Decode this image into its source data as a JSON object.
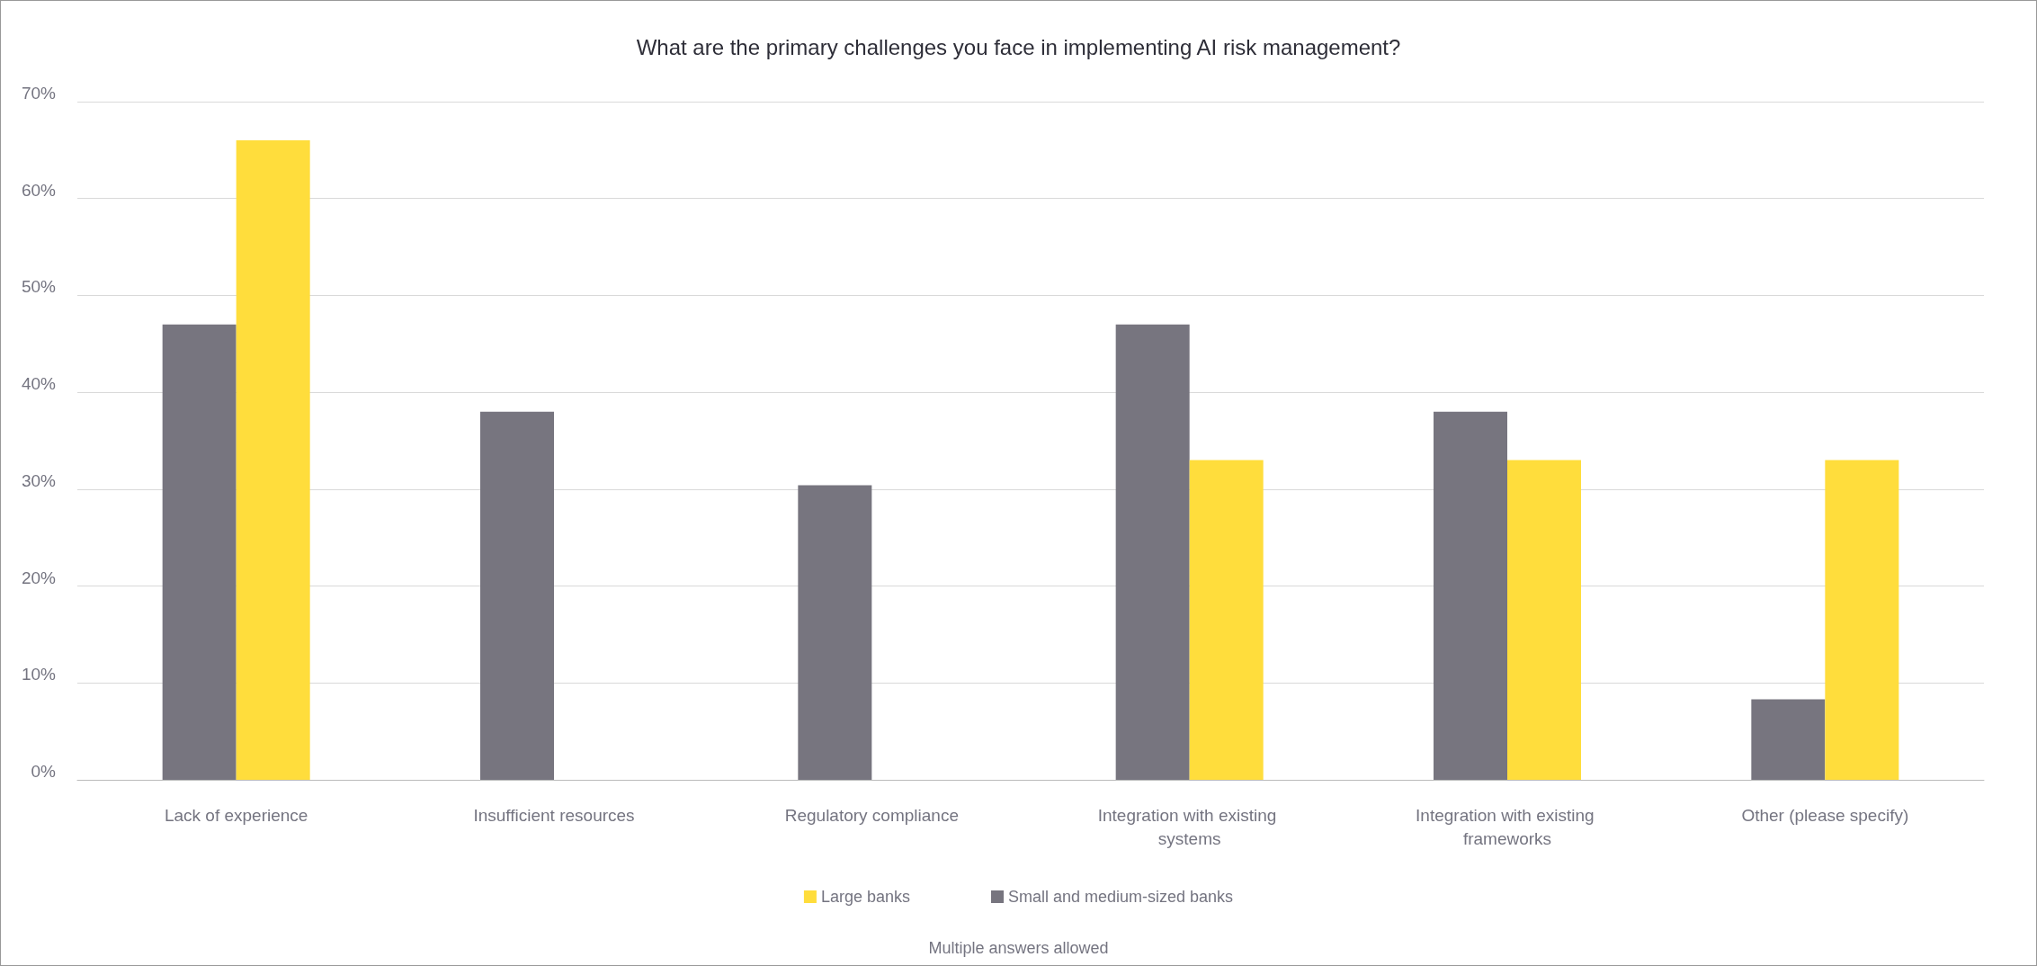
{
  "chart_data": {
    "type": "bar",
    "title": "What are the primary challenges you face in implementing AI risk management?",
    "categories": [
      "Lack of experience",
      "Insufficient resources",
      "Regulatory compliance",
      "Integration with existing systems",
      "Integration with existing frameworks",
      "Other (please specify)"
    ],
    "series": [
      {
        "name": "Small and medium-sized banks",
        "color": "#77757f",
        "values": [
          47,
          38,
          30.4,
          47,
          38,
          8.3
        ]
      },
      {
        "name": "Large banks",
        "color": "#ffdd3c",
        "values": [
          66,
          null,
          null,
          33,
          33,
          33
        ]
      }
    ],
    "ylim": [
      0,
      70
    ],
    "yticks": [
      {
        "value": 0,
        "label": "0%"
      },
      {
        "value": 10,
        "label": "10%"
      },
      {
        "value": 20,
        "label": "20%"
      },
      {
        "value": 30,
        "label": "30%"
      },
      {
        "value": 40,
        "label": "40%"
      },
      {
        "value": 50,
        "label": "50%"
      },
      {
        "value": 60,
        "label": "60%"
      },
      {
        "value": 70,
        "label": "70%"
      }
    ],
    "grid": "y",
    "legend": "bottom",
    "annotations": [
      "Multiple answers allowed"
    ]
  }
}
